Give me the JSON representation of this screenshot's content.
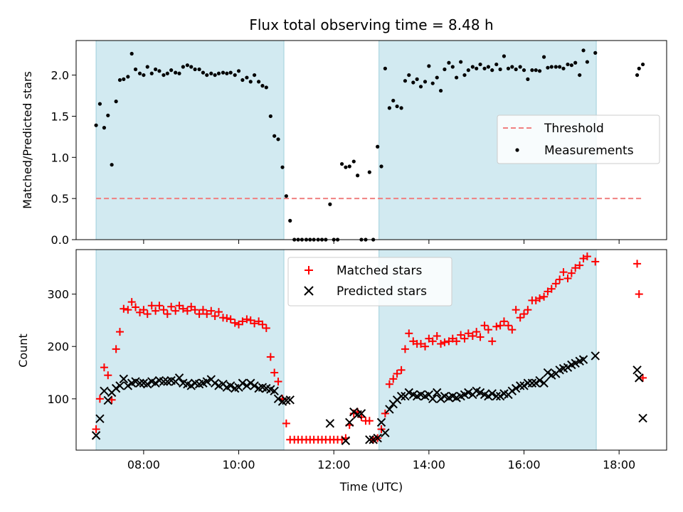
{
  "figure_title": "Flux total observing time = 8.48 h",
  "colors": {
    "shade": "#add8e6",
    "threshold": "#f08080",
    "matched": "#ff0000",
    "predicted": "#000000",
    "measure": "#000000"
  },
  "chart_data": [
    {
      "type": "scatter",
      "title": "Flux total observing time = 8.48 h",
      "xlabel": "",
      "ylabel": "Matched/Predicted stars",
      "xlim": [
        6.58,
        19.0
      ],
      "ylim": [
        0,
        2.42
      ],
      "yticks": [
        0.0,
        0.5,
        1.0,
        1.5,
        2.0
      ],
      "ytick_labels": [
        "0.0",
        "0.5",
        "1.0",
        "1.5",
        "2.0"
      ],
      "grid": false,
      "legend_position": "right",
      "shaded_intervals": [
        [
          7.0,
          10.95
        ],
        [
          12.95,
          17.52
        ]
      ],
      "threshold": {
        "name": "Threshold",
        "y": 0.5,
        "x_range": [
          7.0,
          18.5
        ]
      },
      "series": [
        {
          "name": "Measurements",
          "marker": "dot",
          "x": [
            7.0,
            7.08,
            7.17,
            7.25,
            7.33,
            7.42,
            7.5,
            7.58,
            7.67,
            7.75,
            7.83,
            7.92,
            8.0,
            8.08,
            8.17,
            8.25,
            8.33,
            8.42,
            8.5,
            8.58,
            8.67,
            8.75,
            8.83,
            8.92,
            9.0,
            9.08,
            9.17,
            9.25,
            9.33,
            9.42,
            9.5,
            9.58,
            9.67,
            9.75,
            9.83,
            9.92,
            10.0,
            10.08,
            10.17,
            10.25,
            10.33,
            10.42,
            10.5,
            10.58,
            10.67,
            10.75,
            10.83,
            10.92,
            11.0,
            11.08,
            11.17,
            11.25,
            11.33,
            11.42,
            11.5,
            11.58,
            11.67,
            11.75,
            11.83,
            11.92,
            12.0,
            12.08,
            12.17,
            12.25,
            12.33,
            12.42,
            12.5,
            12.58,
            12.67,
            12.75,
            12.83,
            12.92,
            13.0,
            13.08,
            13.17,
            13.25,
            13.33,
            13.42,
            13.5,
            13.58,
            13.67,
            13.75,
            13.83,
            13.92,
            14.0,
            14.08,
            14.17,
            14.25,
            14.33,
            14.42,
            14.5,
            14.58,
            14.67,
            14.75,
            14.83,
            14.92,
            15.0,
            15.08,
            15.17,
            15.25,
            15.33,
            15.42,
            15.5,
            15.58,
            15.67,
            15.75,
            15.83,
            15.92,
            16.0,
            16.08,
            16.17,
            16.25,
            16.33,
            16.42,
            16.5,
            16.58,
            16.67,
            16.75,
            16.83,
            16.92,
            17.0,
            17.08,
            17.17,
            17.25,
            17.33,
            17.5,
            18.38,
            18.42,
            18.5
          ],
          "y": [
            1.39,
            1.65,
            1.36,
            1.51,
            0.91,
            1.68,
            1.94,
            1.95,
            1.98,
            2.26,
            2.07,
            2.02,
            2.0,
            2.1,
            2.02,
            2.07,
            2.05,
            2.0,
            2.02,
            2.06,
            2.03,
            2.02,
            2.1,
            2.12,
            2.1,
            2.07,
            2.07,
            2.03,
            2.0,
            2.02,
            2.0,
            2.02,
            2.03,
            2.02,
            2.03,
            2.0,
            2.05,
            1.94,
            1.97,
            1.92,
            2.0,
            1.92,
            1.87,
            1.85,
            1.5,
            1.26,
            1.22,
            0.88,
            0.53,
            0.23,
            0.0,
            0.0,
            0.0,
            0.0,
            0.0,
            0.0,
            0.0,
            0.0,
            0.0,
            0.43,
            0.0,
            0.0,
            0.92,
            0.88,
            0.89,
            0.95,
            0.78,
            0.0,
            0.0,
            0.82,
            0.0,
            1.13,
            0.89,
            2.08,
            1.6,
            1.69,
            1.62,
            1.6,
            1.93,
            2.0,
            1.91,
            1.95,
            1.86,
            1.92,
            2.11,
            1.9,
            1.97,
            1.81,
            2.07,
            2.15,
            2.1,
            1.97,
            2.16,
            2.0,
            2.06,
            2.1,
            2.08,
            2.13,
            2.08,
            2.1,
            2.06,
            2.13,
            2.07,
            2.23,
            2.08,
            2.1,
            2.07,
            2.1,
            2.06,
            1.95,
            2.06,
            2.06,
            2.05,
            2.22,
            2.09,
            2.1,
            2.1,
            2.1,
            2.08,
            2.13,
            2.12,
            2.15,
            2.0,
            2.3,
            2.16,
            2.27,
            2.0,
            2.08,
            2.13
          ],
          "note_last_point": ""
        }
      ]
    },
    {
      "type": "scatter",
      "title": "",
      "xlabel": "Time (UTC)",
      "ylabel": "Count",
      "xlim": [
        6.58,
        19.0
      ],
      "ylim": [
        2,
        385
      ],
      "yticks": [
        100,
        200,
        300
      ],
      "ytick_labels": [
        "100",
        "200",
        "300"
      ],
      "xticks": [
        8,
        10,
        12,
        14,
        16,
        18
      ],
      "xtick_labels": [
        "08:00",
        "10:00",
        "12:00",
        "14:00",
        "16:00",
        "18:00"
      ],
      "grid": false,
      "legend_position": "top-center",
      "shaded_intervals": [
        [
          7.0,
          10.95
        ],
        [
          12.95,
          17.52
        ]
      ],
      "series": [
        {
          "name": "Matched stars",
          "marker": "plus",
          "x": [
            7.0,
            7.08,
            7.17,
            7.25,
            7.33,
            7.42,
            7.5,
            7.58,
            7.67,
            7.75,
            7.83,
            7.92,
            8.0,
            8.08,
            8.17,
            8.25,
            8.33,
            8.42,
            8.5,
            8.58,
            8.67,
            8.75,
            8.83,
            8.92,
            9.0,
            9.08,
            9.17,
            9.25,
            9.33,
            9.42,
            9.5,
            9.58,
            9.67,
            9.75,
            9.83,
            9.92,
            10.0,
            10.08,
            10.17,
            10.25,
            10.33,
            10.42,
            10.5,
            10.58,
            10.67,
            10.75,
            10.83,
            10.92,
            11.0,
            11.08,
            11.17,
            11.25,
            11.33,
            11.42,
            11.5,
            11.58,
            11.67,
            11.75,
            11.83,
            11.92,
            12.0,
            12.08,
            12.17,
            12.25,
            12.33,
            12.42,
            12.5,
            12.58,
            12.67,
            12.75,
            12.83,
            12.92,
            13.0,
            13.08,
            13.17,
            13.25,
            13.33,
            13.42,
            13.5,
            13.58,
            13.67,
            13.75,
            13.83,
            13.92,
            14.0,
            14.08,
            14.17,
            14.25,
            14.33,
            14.42,
            14.5,
            14.58,
            14.67,
            14.75,
            14.83,
            14.92,
            15.0,
            15.08,
            15.17,
            15.25,
            15.33,
            15.42,
            15.5,
            15.58,
            15.67,
            15.75,
            15.83,
            15.92,
            16.0,
            16.08,
            16.17,
            16.25,
            16.33,
            16.42,
            16.5,
            16.58,
            16.67,
            16.75,
            16.83,
            16.92,
            17.0,
            17.08,
            17.17,
            17.25,
            17.33,
            17.5,
            18.38,
            18.42,
            18.5
          ],
          "y": [
            42,
            100,
            160,
            145,
            98,
            195,
            228,
            272,
            270,
            285,
            275,
            265,
            270,
            262,
            278,
            268,
            278,
            270,
            262,
            276,
            268,
            278,
            272,
            268,
            276,
            270,
            262,
            270,
            262,
            268,
            258,
            266,
            255,
            254,
            252,
            245,
            242,
            248,
            252,
            250,
            244,
            248,
            242,
            235,
            180,
            150,
            133,
            100,
            53,
            22,
            22,
            22,
            22,
            22,
            22,
            22,
            22,
            22,
            22,
            22,
            22,
            22,
            22,
            25,
            50,
            72,
            75,
            65,
            58,
            58,
            22,
            25,
            42,
            72,
            128,
            138,
            148,
            155,
            195,
            225,
            210,
            205,
            205,
            200,
            215,
            210,
            220,
            205,
            208,
            210,
            215,
            210,
            222,
            215,
            225,
            220,
            228,
            218,
            240,
            232,
            210,
            238,
            240,
            248,
            240,
            232,
            270,
            255,
            262,
            270,
            288,
            288,
            292,
            295,
            305,
            310,
            320,
            328,
            342,
            330,
            340,
            350,
            355,
            368,
            372,
            362,
            358,
            300,
            140
          ],
          "note_last_point": ""
        },
        {
          "name": "Predicted stars",
          "marker": "x",
          "x": [
            7.0,
            7.08,
            7.17,
            7.25,
            7.33,
            7.42,
            7.5,
            7.58,
            7.67,
            7.75,
            7.83,
            7.92,
            8.0,
            8.08,
            8.17,
            8.25,
            8.33,
            8.42,
            8.5,
            8.58,
            8.67,
            8.75,
            8.83,
            8.92,
            9.0,
            9.08,
            9.17,
            9.25,
            9.33,
            9.42,
            9.5,
            9.58,
            9.67,
            9.75,
            9.83,
            9.92,
            10.0,
            10.08,
            10.17,
            10.25,
            10.33,
            10.42,
            10.5,
            10.58,
            10.67,
            10.75,
            10.83,
            10.92,
            11.0,
            11.08,
            11.92,
            12.25,
            12.33,
            12.42,
            12.5,
            12.58,
            12.75,
            12.83,
            12.92,
            13.0,
            13.08,
            13.17,
            13.25,
            13.33,
            13.42,
            13.5,
            13.58,
            13.67,
            13.75,
            13.83,
            13.92,
            14.0,
            14.08,
            14.17,
            14.25,
            14.33,
            14.42,
            14.5,
            14.58,
            14.67,
            14.75,
            14.83,
            14.92,
            15.0,
            15.08,
            15.17,
            15.25,
            15.33,
            15.42,
            15.5,
            15.58,
            15.67,
            15.75,
            15.83,
            15.92,
            16.0,
            16.08,
            16.17,
            16.25,
            16.33,
            16.42,
            16.5,
            16.58,
            16.67,
            16.75,
            16.83,
            16.92,
            17.0,
            17.08,
            17.17,
            17.25,
            17.5,
            18.38,
            18.42,
            18.5
          ],
          "y": [
            30,
            62,
            115,
            97,
            112,
            120,
            125,
            138,
            125,
            130,
            133,
            130,
            130,
            128,
            133,
            130,
            135,
            133,
            133,
            135,
            133,
            140,
            130,
            128,
            125,
            130,
            128,
            130,
            133,
            137,
            130,
            125,
            128,
            122,
            125,
            120,
            122,
            130,
            125,
            130,
            125,
            120,
            122,
            120,
            118,
            115,
            100,
            95,
            97,
            98,
            53,
            20,
            55,
            75,
            70,
            72,
            22,
            22,
            25,
            55,
            35,
            80,
            90,
            98,
            105,
            105,
            112,
            108,
            105,
            108,
            105,
            108,
            100,
            112,
            100,
            105,
            102,
            105,
            102,
            105,
            108,
            112,
            108,
            115,
            112,
            108,
            105,
            110,
            105,
            105,
            110,
            108,
            115,
            120,
            125,
            125,
            130,
            130,
            130,
            135,
            130,
            150,
            145,
            148,
            155,
            158,
            160,
            165,
            168,
            172,
            175,
            182,
            155,
            140,
            63
          ],
          "note_last_point": ""
        }
      ]
    }
  ]
}
